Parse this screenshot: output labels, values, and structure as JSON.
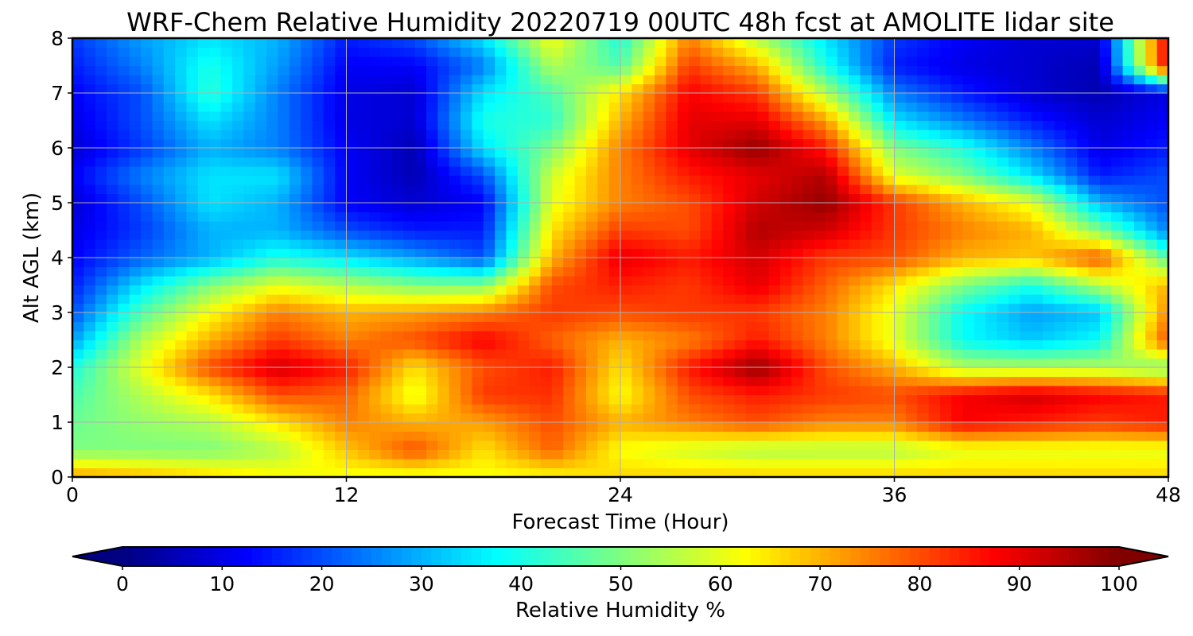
{
  "chart_data": [
    {
      "type": "heatmap",
      "title": "WRF-Chem Relative Humidity 20220719 00UTC 48h fcst at AMOLITE lidar site",
      "xlabel": "Forecast Time (Hour)",
      "ylabel": "Alt AGL (km)",
      "xlim": [
        0,
        48
      ],
      "ylim": [
        0,
        8
      ],
      "x_ticks": [
        "0",
        "12",
        "24",
        "36",
        "48"
      ],
      "y_ticks": [
        "0",
        "1",
        "2",
        "3",
        "4",
        "5",
        "6",
        "7",
        "8"
      ],
      "grid": true,
      "colormap": "jet",
      "x": [
        0,
        3,
        6,
        9,
        12,
        15,
        18,
        21,
        24,
        27,
        30,
        33,
        36,
        39,
        42,
        45,
        48
      ],
      "y": [
        0.05,
        0.5,
        1,
        1.5,
        2,
        2.5,
        3,
        3.5,
        4,
        4.5,
        5,
        5.5,
        6,
        6.5,
        7,
        7.5,
        8
      ],
      "z": [
        [
          70,
          68,
          65,
          62,
          62,
          62,
          62,
          64,
          66,
          66,
          66,
          66,
          66,
          66,
          66,
          66,
          66
        ],
        [
          50,
          50,
          50,
          55,
          68,
          80,
          65,
          78,
          62,
          58,
          55,
          55,
          55,
          60,
          60,
          60,
          60
        ],
        [
          48,
          52,
          55,
          65,
          75,
          70,
          72,
          80,
          70,
          75,
          80,
          75,
          75,
          88,
          85,
          82,
          85
        ],
        [
          45,
          55,
          65,
          80,
          78,
          60,
          82,
          83,
          62,
          80,
          85,
          82,
          80,
          88,
          92,
          88,
          85
        ],
        [
          40,
          60,
          80,
          92,
          85,
          65,
          80,
          85,
          65,
          85,
          98,
          80,
          70,
          55,
          55,
          55,
          50
        ],
        [
          28,
          55,
          70,
          82,
          75,
          80,
          88,
          78,
          70,
          75,
          85,
          75,
          60,
          38,
          32,
          38,
          80
        ],
        [
          20,
          45,
          62,
          75,
          70,
          72,
          75,
          82,
          80,
          82,
          82,
          75,
          60,
          38,
          28,
          32,
          75
        ],
        [
          15,
          35,
          50,
          60,
          55,
          50,
          50,
          80,
          85,
          82,
          90,
          78,
          65,
          50,
          40,
          55,
          70
        ],
        [
          12,
          22,
          30,
          40,
          35,
          28,
          20,
          70,
          90,
          85,
          92,
          82,
          80,
          70,
          68,
          80,
          45
        ],
        [
          10,
          18,
          30,
          30,
          20,
          15,
          15,
          65,
          82,
          80,
          95,
          92,
          82,
          75,
          70,
          50,
          25
        ],
        [
          8,
          20,
          35,
          30,
          12,
          8,
          12,
          60,
          75,
          80,
          92,
          98,
          82,
          70,
          60,
          30,
          20
        ],
        [
          12,
          25,
          35,
          35,
          12,
          5,
          20,
          58,
          75,
          85,
          90,
          95,
          60,
          50,
          35,
          15,
          20
        ],
        [
          8,
          18,
          30,
          25,
          12,
          5,
          35,
          50,
          75,
          90,
          98,
          85,
          50,
          40,
          25,
          10,
          15
        ],
        [
          10,
          20,
          35,
          25,
          10,
          8,
          40,
          42,
          70,
          90,
          90,
          72,
          35,
          25,
          15,
          8,
          12
        ],
        [
          12,
          20,
          42,
          25,
          10,
          8,
          35,
          45,
          65,
          88,
          82,
          55,
          25,
          15,
          8,
          5,
          10
        ],
        [
          15,
          25,
          40,
          28,
          12,
          12,
          25,
          55,
          45,
          82,
          70,
          40,
          15,
          10,
          8,
          5,
          90
        ],
        [
          18,
          28,
          35,
          30,
          15,
          20,
          35,
          62,
          40,
          75,
          55,
          35,
          18,
          12,
          8,
          8,
          90
        ]
      ],
      "colorbar": {
        "label": "Relative Humidity %",
        "ticks": [
          "0",
          "10",
          "20",
          "30",
          "40",
          "50",
          "60",
          "70",
          "80",
          "90",
          "100"
        ],
        "min": 0,
        "max": 100,
        "extend": "both"
      }
    }
  ]
}
